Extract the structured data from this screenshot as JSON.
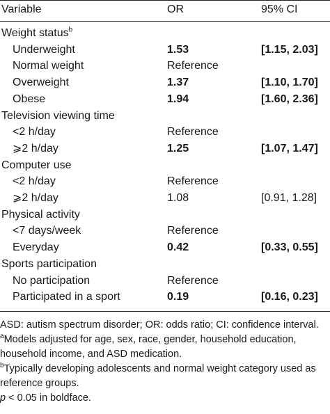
{
  "header": {
    "columns": [
      "Variable",
      "OR",
      "95% CI"
    ]
  },
  "table": {
    "rows": [
      {
        "label": "Weight status",
        "sup": "b",
        "group": true
      },
      {
        "label": "Underweight",
        "or": "1.53",
        "ci": "[1.15, 2.03]",
        "bold": true
      },
      {
        "label": "Normal weight",
        "or": "Reference"
      },
      {
        "label": "Overweight",
        "or": "1.37",
        "ci": "[1.10, 1.70]",
        "bold": true
      },
      {
        "label": "Obese",
        "or": "1.94",
        "ci": "[1.60, 2.36]",
        "bold": true
      },
      {
        "label": "Television viewing time",
        "group": true
      },
      {
        "label": "<2 h/day",
        "or": "Reference"
      },
      {
        "label": "⩾2 h/day",
        "or": "1.25",
        "ci": "[1.07, 1.47]",
        "bold": true
      },
      {
        "label": "Computer use",
        "group": true
      },
      {
        "label": "<2 h/day",
        "or": "Reference"
      },
      {
        "label": "⩾2 h/day",
        "or": "1.08",
        "ci": "[0.91, 1.28]"
      },
      {
        "label": "Physical activity",
        "group": true
      },
      {
        "label": "<7 days/week",
        "or": "Reference"
      },
      {
        "label": "Everyday",
        "or": "0.42",
        "ci": "[0.33, 0.55]",
        "bold": true
      },
      {
        "label": "Sports participation",
        "group": true
      },
      {
        "label": "No participation",
        "or": "Reference"
      },
      {
        "label": "Participated in a sport",
        "or": "0.19",
        "ci": "[0.16, 0.23]",
        "bold": true
      }
    ]
  },
  "footnotes": [
    {
      "text": "ASD: autism spectrum disorder; OR: odds ratio; CI: confidence interval."
    },
    {
      "marker": "a",
      "text": "Models adjusted for age, sex, race, gender, household education, household income, and ASD medication."
    },
    {
      "marker": "b",
      "text": "Typically developing adolescents and normal weight category used as reference groups."
    },
    {
      "italic": "p",
      "text": " < 0.05 in boldface."
    }
  ]
}
